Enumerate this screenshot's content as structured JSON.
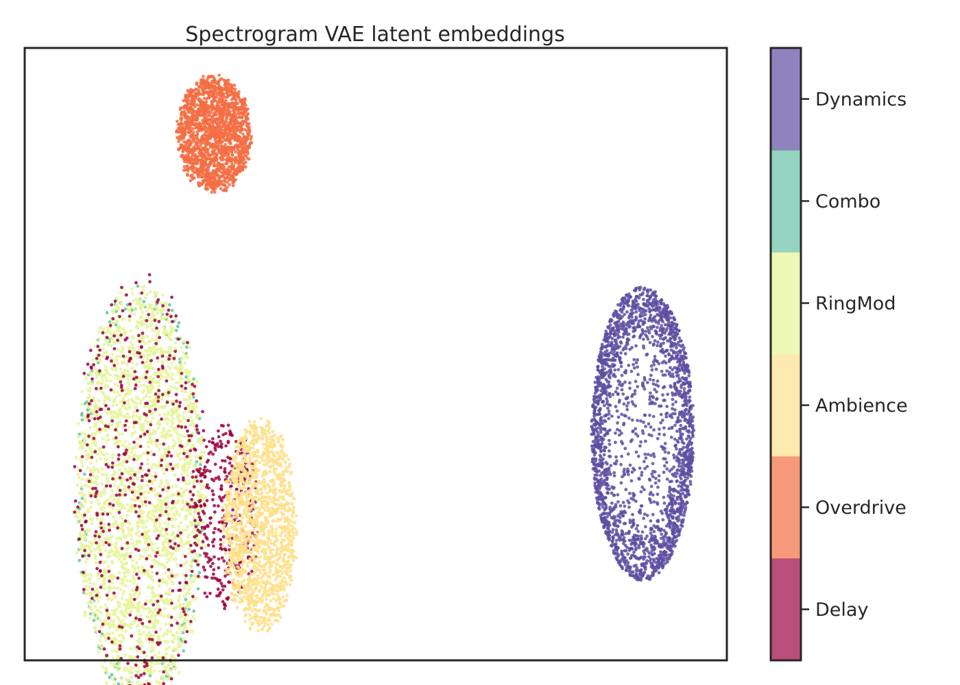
{
  "chart_data": {
    "type": "scatter",
    "title": "Spectrogram VAE latent embeddings",
    "xlabel": "",
    "ylabel": "",
    "x_ticks_visible": false,
    "y_ticks_visible": false,
    "grid": false,
    "xlim": [
      0,
      100
    ],
    "ylim": [
      0,
      100
    ],
    "colorbar": {
      "placement": "right",
      "labels": [
        "Delay",
        "Overdrive",
        "Ambience",
        "RingMod",
        "Combo",
        "Dynamics"
      ],
      "colors": [
        "#9e0142",
        "#f46d43",
        "#fee08b",
        "#e6f598",
        "#66c2a5",
        "#5e4fa2"
      ],
      "alpha": 0.7
    },
    "series": [
      {
        "name": "Delay",
        "color": "#9e0142",
        "clusters": [
          {
            "cx": 16.5,
            "cy": 28,
            "rx": 9,
            "ry": 34,
            "n": 450,
            "shape": "blob"
          },
          {
            "cx": 28.5,
            "cy": 24,
            "rx": 4.8,
            "ry": 15,
            "n": 340,
            "shape": "blob"
          }
        ]
      },
      {
        "name": "Overdrive",
        "color": "#f46d43",
        "clusters": [
          {
            "cx": 27,
            "cy": 86,
            "rx": 5.2,
            "ry": 9.3,
            "n": 1700,
            "shape": "blob"
          }
        ]
      },
      {
        "name": "Ambience",
        "color": "#fee08b",
        "clusters": [
          {
            "cx": 33.5,
            "cy": 22,
            "rx": 5.2,
            "ry": 17,
            "n": 1500,
            "shape": "blob"
          }
        ]
      },
      {
        "name": "RingMod",
        "color": "#e6f598",
        "clusters": [
          {
            "cx": 16.5,
            "cy": 27,
            "rx": 9,
            "ry": 34,
            "n": 2600,
            "shape": "blob"
          }
        ]
      },
      {
        "name": "Combo",
        "color": "#66c2a5",
        "clusters": [
          {
            "cx": 16.5,
            "cy": 27,
            "rx": 9.2,
            "ry": 35,
            "n": 150,
            "shape": "edge"
          }
        ]
      },
      {
        "name": "Dynamics",
        "color": "#5e4fa2",
        "clusters": [
          {
            "cx": 88,
            "cy": 37,
            "rx": 7.3,
            "ry": 24,
            "n": 2300,
            "shape": "ring"
          }
        ]
      }
    ]
  }
}
